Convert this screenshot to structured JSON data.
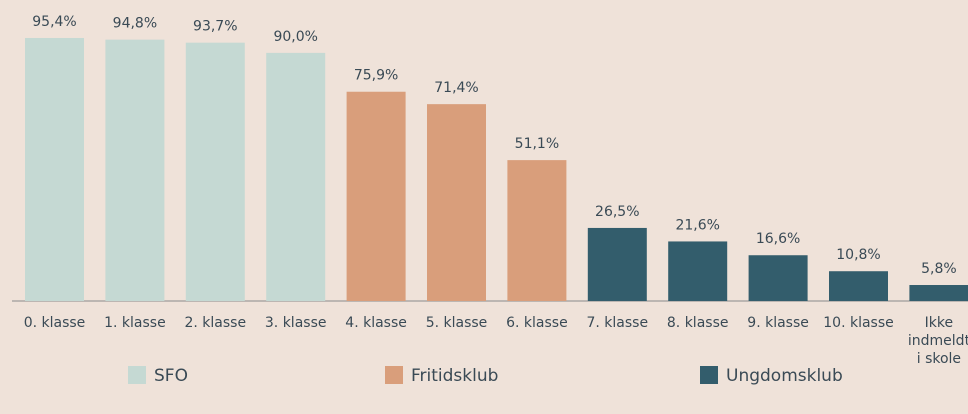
{
  "chart_data": {
    "type": "bar",
    "categories": [
      "0. klasse",
      "1. klasse",
      "2. klasse",
      "3. klasse",
      "4. klasse",
      "5. klasse",
      "6. klasse",
      "7. klasse",
      "8. klasse",
      "9. klasse",
      "10. klasse",
      "Ikke indmeldt i skole"
    ],
    "series": [
      {
        "name": "SFO",
        "color": "#c5d9d3",
        "values": [
          95.4,
          94.8,
          93.7,
          90.0,
          null,
          null,
          null,
          null,
          null,
          null,
          null,
          null
        ],
        "value_labels": [
          "95,4%",
          "94,8%",
          "93,7%",
          "90,0%",
          null,
          null,
          null,
          null,
          null,
          null,
          null,
          null
        ]
      },
      {
        "name": "Fritidsklub",
        "color": "#d99e7b",
        "values": [
          null,
          null,
          null,
          null,
          75.9,
          71.4,
          51.1,
          null,
          null,
          null,
          null,
          null
        ],
        "value_labels": [
          null,
          null,
          null,
          null,
          "75,9%",
          "71,4%",
          "51,1%",
          null,
          null,
          null,
          null,
          null
        ]
      },
      {
        "name": "Ungdomsklub",
        "color": "#335d6c",
        "values": [
          null,
          null,
          null,
          null,
          null,
          null,
          null,
          26.5,
          21.6,
          16.6,
          10.8,
          5.8
        ],
        "value_labels": [
          null,
          null,
          null,
          null,
          null,
          null,
          null,
          "26,5%",
          "21,6%",
          "16,6%",
          "10,8%",
          "5,8%"
        ]
      }
    ],
    "ylim": [
      0,
      100
    ]
  }
}
